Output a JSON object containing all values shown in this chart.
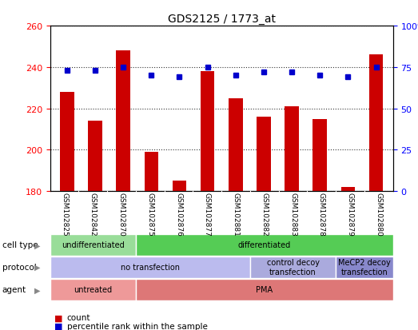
{
  "title": "GDS2125 / 1773_at",
  "samples": [
    "GSM102825",
    "GSM102842",
    "GSM102870",
    "GSM102875",
    "GSM102876",
    "GSM102877",
    "GSM102881",
    "GSM102882",
    "GSM102883",
    "GSM102878",
    "GSM102879",
    "GSM102880"
  ],
  "count_values": [
    228,
    214,
    248,
    199,
    185,
    238,
    225,
    216,
    221,
    215,
    182,
    246
  ],
  "percentile_values": [
    73,
    73,
    75,
    70,
    69,
    75,
    70,
    72,
    72,
    70,
    69,
    75
  ],
  "ylim_left": [
    180,
    260
  ],
  "ylim_right": [
    0,
    100
  ],
  "yticks_left": [
    180,
    200,
    220,
    240,
    260
  ],
  "yticks_right": [
    0,
    25,
    50,
    75,
    100
  ],
  "bar_color": "#cc0000",
  "dot_color": "#0000cc",
  "grid_color": "#333333",
  "cell_type_row": {
    "label": "cell type",
    "segments": [
      {
        "text": "undifferentiated",
        "start": 0,
        "end": 3,
        "color": "#99dd99"
      },
      {
        "text": "differentiated",
        "start": 3,
        "end": 12,
        "color": "#55cc55"
      }
    ]
  },
  "protocol_row": {
    "label": "protocol",
    "segments": [
      {
        "text": "no transfection",
        "start": 0,
        "end": 7,
        "color": "#bbbbee"
      },
      {
        "text": "control decoy\ntransfection",
        "start": 7,
        "end": 10,
        "color": "#aaaadd"
      },
      {
        "text": "MeCP2 decoy\ntransfection",
        "start": 10,
        "end": 12,
        "color": "#8888cc"
      }
    ]
  },
  "agent_row": {
    "label": "agent",
    "segments": [
      {
        "text": "untreated",
        "start": 0,
        "end": 3,
        "color": "#ee9999"
      },
      {
        "text": "PMA",
        "start": 3,
        "end": 12,
        "color": "#dd7777"
      }
    ]
  },
  "legend_items": [
    {
      "color": "#cc0000",
      "label": "count"
    },
    {
      "color": "#0000cc",
      "label": "percentile rank within the sample"
    }
  ]
}
